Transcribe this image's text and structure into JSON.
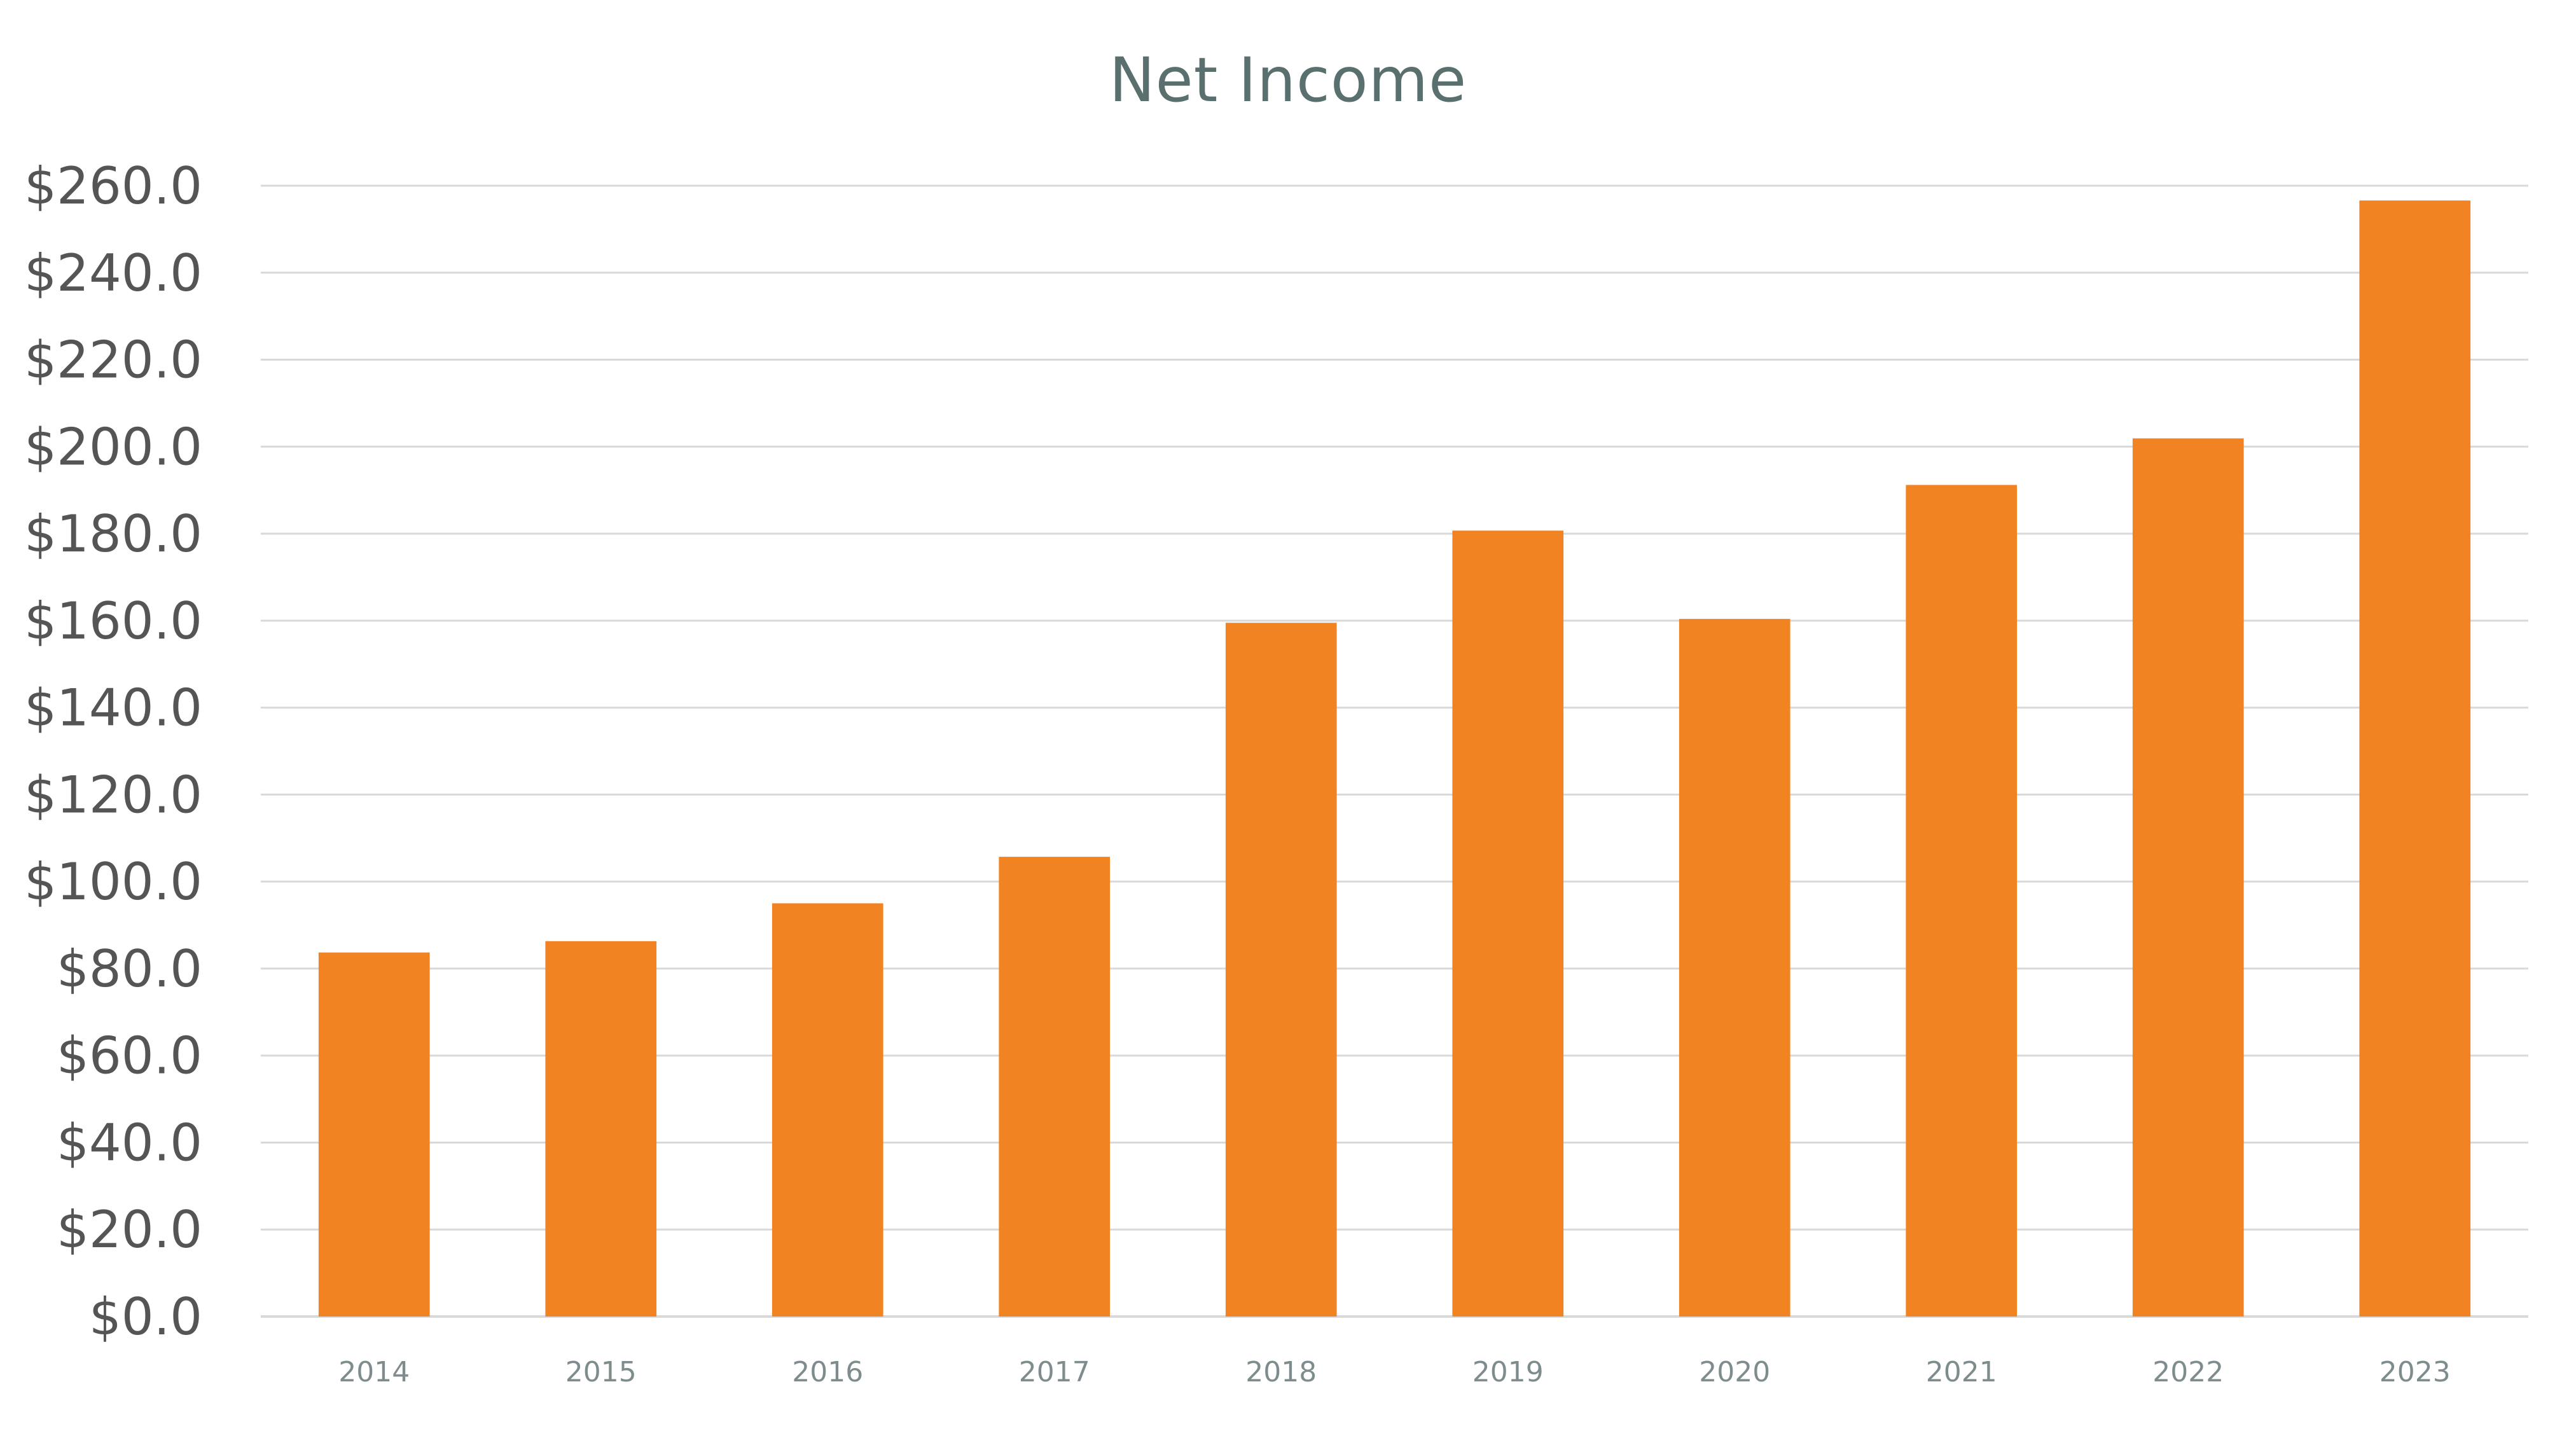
{
  "chart_data": {
    "type": "bar",
    "title": "Net Income",
    "xlabel": "",
    "ylabel": "",
    "categories": [
      "2014",
      "2015",
      "2016",
      "2017",
      "2018",
      "2019",
      "2020",
      "2021",
      "2022",
      "2023"
    ],
    "series": [
      {
        "values": [
          83.7,
          86.3,
          95.0,
          105.7,
          159.5,
          180.7,
          160.4,
          191.2,
          201.9,
          256.6
        ],
        "color": "#f28322"
      }
    ],
    "ylim": [
      0,
      260
    ],
    "yticks": [
      0,
      20,
      40,
      60,
      80,
      100,
      120,
      140,
      160,
      180,
      200,
      220,
      240,
      260
    ],
    "ytick_labels": [
      "$0.0",
      "$20.0",
      "$40.0",
      "$60.0",
      "$80.0",
      "$100.0",
      "$120.0",
      "$140.0",
      "$160.0",
      "$180.0",
      "$200.0",
      "$220.0",
      "$240.0",
      "$260.0"
    ],
    "grid": true,
    "legend": "none",
    "colors": {
      "bar": "#f28322",
      "grid": "#d9d9d9",
      "title": "#5a706e",
      "y_tick": "#555555",
      "x_tick": "#7f8c8d"
    }
  }
}
